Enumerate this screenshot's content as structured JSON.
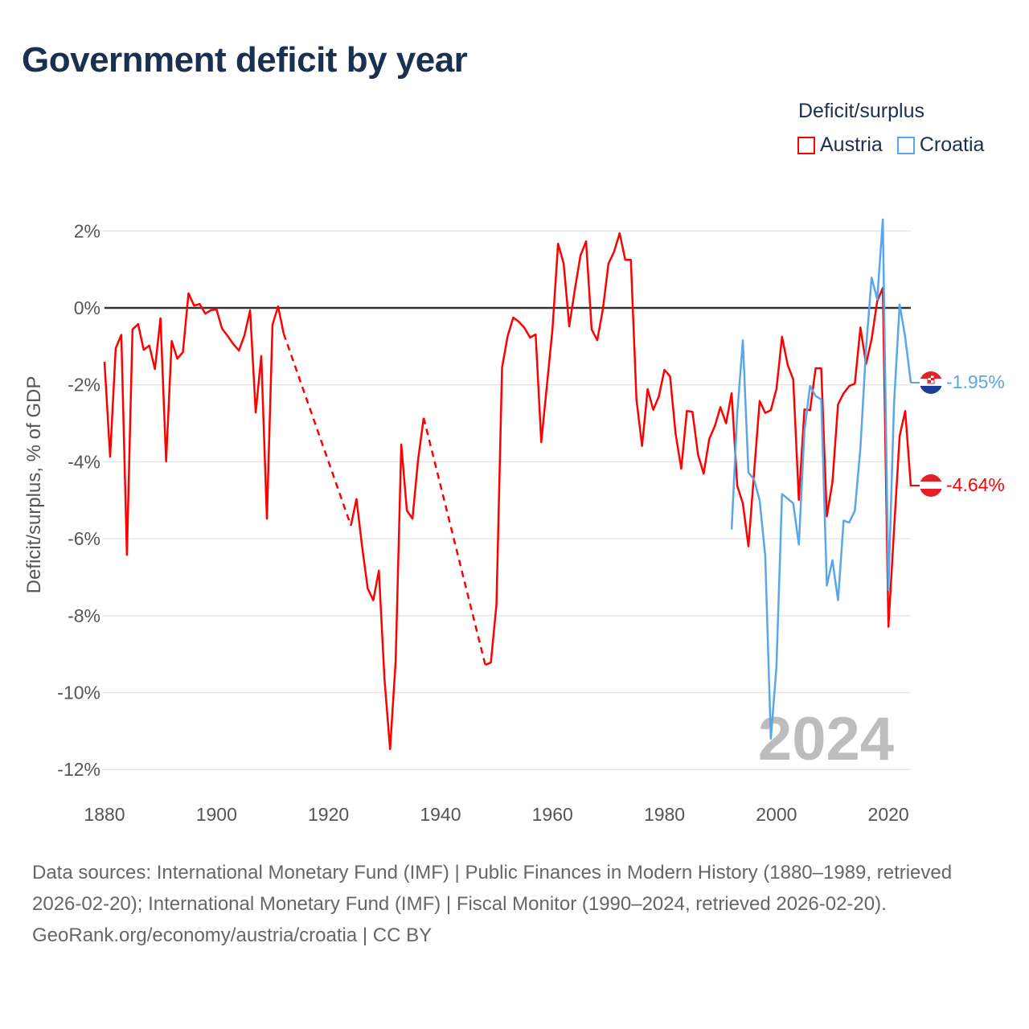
{
  "title": "Government deficit by year",
  "legend": {
    "title": "Deficit/surplus",
    "items": [
      {
        "label": "Austria",
        "color": "#ff0000"
      },
      {
        "label": "Croatia",
        "color": "#5aa6ea"
      }
    ]
  },
  "watermark_year": "2024",
  "end_labels": {
    "croatia": "-1.95%",
    "austria": "-4.64%"
  },
  "footer": {
    "sources": "Data sources: International Monetary Fund (IMF) | Public Finances in Modern History (1880–1989, retrieved 2026-02-20); International Monetary Fund (IMF) | Fiscal Monitor (1990–2024, retrieved 2026-02-20).",
    "credit": "GeoRank.org/economy/austria/croatia | CC BY"
  },
  "chart_data": {
    "type": "line",
    "title": "Government deficit by year",
    "xlabel": "",
    "ylabel": "Deficit/surplus, % of GDP",
    "xlim": [
      1880,
      2024
    ],
    "ylim": [
      -12,
      2
    ],
    "xticks": [
      1880,
      1900,
      1920,
      1940,
      1960,
      1980,
      2000,
      2020
    ],
    "xtick_labels": [
      "1880",
      "1900",
      "1920",
      "1940",
      "1960",
      "1980",
      "2000",
      "2020"
    ],
    "yticks": [
      2,
      0,
      -2,
      -4,
      -6,
      -8,
      -10,
      -12
    ],
    "ytick_labels": [
      "2%",
      "0%",
      "-2%",
      "-4%",
      "-6%",
      "-8%",
      "-10%",
      "-12%"
    ],
    "grid": true,
    "legend_position": "top-right",
    "series": [
      {
        "name": "Austria",
        "color": "#ff0000",
        "x": [
          1880,
          1881,
          1882,
          1883,
          1884,
          1885,
          1886,
          1887,
          1888,
          1889,
          1890,
          1891,
          1892,
          1893,
          1894,
          1895,
          1896,
          1897,
          1898,
          1899,
          1900,
          1901,
          1902,
          1903,
          1904,
          1905,
          1906,
          1907,
          1908,
          1909,
          1910,
          1911,
          1912,
          1924,
          1925,
          1926,
          1927,
          1928,
          1929,
          1930,
          1931,
          1932,
          1933,
          1934,
          1935,
          1936,
          1937,
          1948,
          1949,
          1950,
          1951,
          1952,
          1953,
          1954,
          1955,
          1956,
          1957,
          1958,
          1959,
          1960,
          1961,
          1962,
          1963,
          1964,
          1965,
          1966,
          1967,
          1968,
          1969,
          1970,
          1971,
          1972,
          1973,
          1974,
          1975,
          1976,
          1977,
          1978,
          1979,
          1980,
          1981,
          1982,
          1983,
          1984,
          1985,
          1986,
          1987,
          1988,
          1989,
          1990,
          1991,
          1992,
          1993,
          1994,
          1995,
          1996,
          1997,
          1998,
          1999,
          2000,
          2001,
          2002,
          2003,
          2004,
          2005,
          2006,
          2007,
          2008,
          2009,
          2010,
          2011,
          2012,
          2013,
          2014,
          2015,
          2016,
          2017,
          2018,
          2019,
          2020,
          2021,
          2022,
          2023,
          2024
        ],
        "values": [
          -1.4,
          -3.87,
          -1.05,
          -0.7,
          -6.42,
          -0.56,
          -0.42,
          -1.09,
          -0.98,
          -1.59,
          -0.27,
          -3.99,
          -0.86,
          -1.32,
          -1.15,
          0.38,
          0.06,
          0.1,
          -0.15,
          -0.06,
          -0.04,
          -0.54,
          -0.73,
          -0.94,
          -1.11,
          -0.71,
          -0.06,
          -2.72,
          -1.25,
          -5.48,
          -0.44,
          0.04,
          -0.67,
          -5.66,
          -4.97,
          -6.2,
          -7.29,
          -7.6,
          -6.83,
          -9.65,
          -11.47,
          -9.17,
          -3.55,
          -5.27,
          -5.48,
          -3.95,
          -2.86,
          -9.28,
          -9.22,
          -7.71,
          -1.55,
          -0.73,
          -0.25,
          -0.36,
          -0.52,
          -0.77,
          -0.69,
          -3.49,
          -2.03,
          -0.56,
          1.67,
          1.15,
          -0.48,
          0.48,
          1.36,
          1.73,
          -0.56,
          -0.84,
          -0.04,
          1.15,
          1.46,
          1.94,
          1.25,
          1.25,
          -2.38,
          -3.59,
          -2.11,
          -2.65,
          -2.3,
          -1.61,
          -1.78,
          -3.28,
          -4.18,
          -2.68,
          -2.7,
          -3.82,
          -4.31,
          -3.41,
          -3.07,
          -2.58,
          -3.0,
          -2.22,
          -4.62,
          -5.08,
          -6.2,
          -4.3,
          -2.42,
          -2.73,
          -2.66,
          -2.11,
          -0.75,
          -1.48,
          -1.86,
          -4.99,
          -2.64,
          -2.66,
          -1.57,
          -1.57,
          -5.42,
          -4.53,
          -2.51,
          -2.22,
          -2.03,
          -1.97,
          -0.51,
          -1.46,
          -0.81,
          0.18,
          0.52,
          -8.29,
          -5.77,
          -3.33,
          -2.68,
          -4.64
        ]
      },
      {
        "name": "Croatia",
        "color": "#5aa6ea",
        "x": [
          1992,
          1993,
          1994,
          1995,
          1996,
          1997,
          1998,
          1999,
          2000,
          2001,
          2002,
          2003,
          2004,
          2005,
          2006,
          2007,
          2008,
          2009,
          2010,
          2011,
          2012,
          2013,
          2014,
          2015,
          2016,
          2017,
          2018,
          2019,
          2020,
          2021,
          2022,
          2023,
          2024
        ],
        "values": [
          -5.76,
          -2.75,
          -0.84,
          -4.28,
          -4.46,
          -5.0,
          -6.45,
          -11.2,
          -9.33,
          -4.84,
          -4.96,
          -5.08,
          -6.15,
          -3.2,
          -2.03,
          -2.29,
          -2.38,
          -7.22,
          -6.56,
          -7.6,
          -5.53,
          -5.58,
          -5.27,
          -3.64,
          -1.06,
          0.79,
          0.22,
          2.3,
          -7.33,
          -2.5,
          0.09,
          -0.77,
          -1.95
        ]
      }
    ]
  }
}
